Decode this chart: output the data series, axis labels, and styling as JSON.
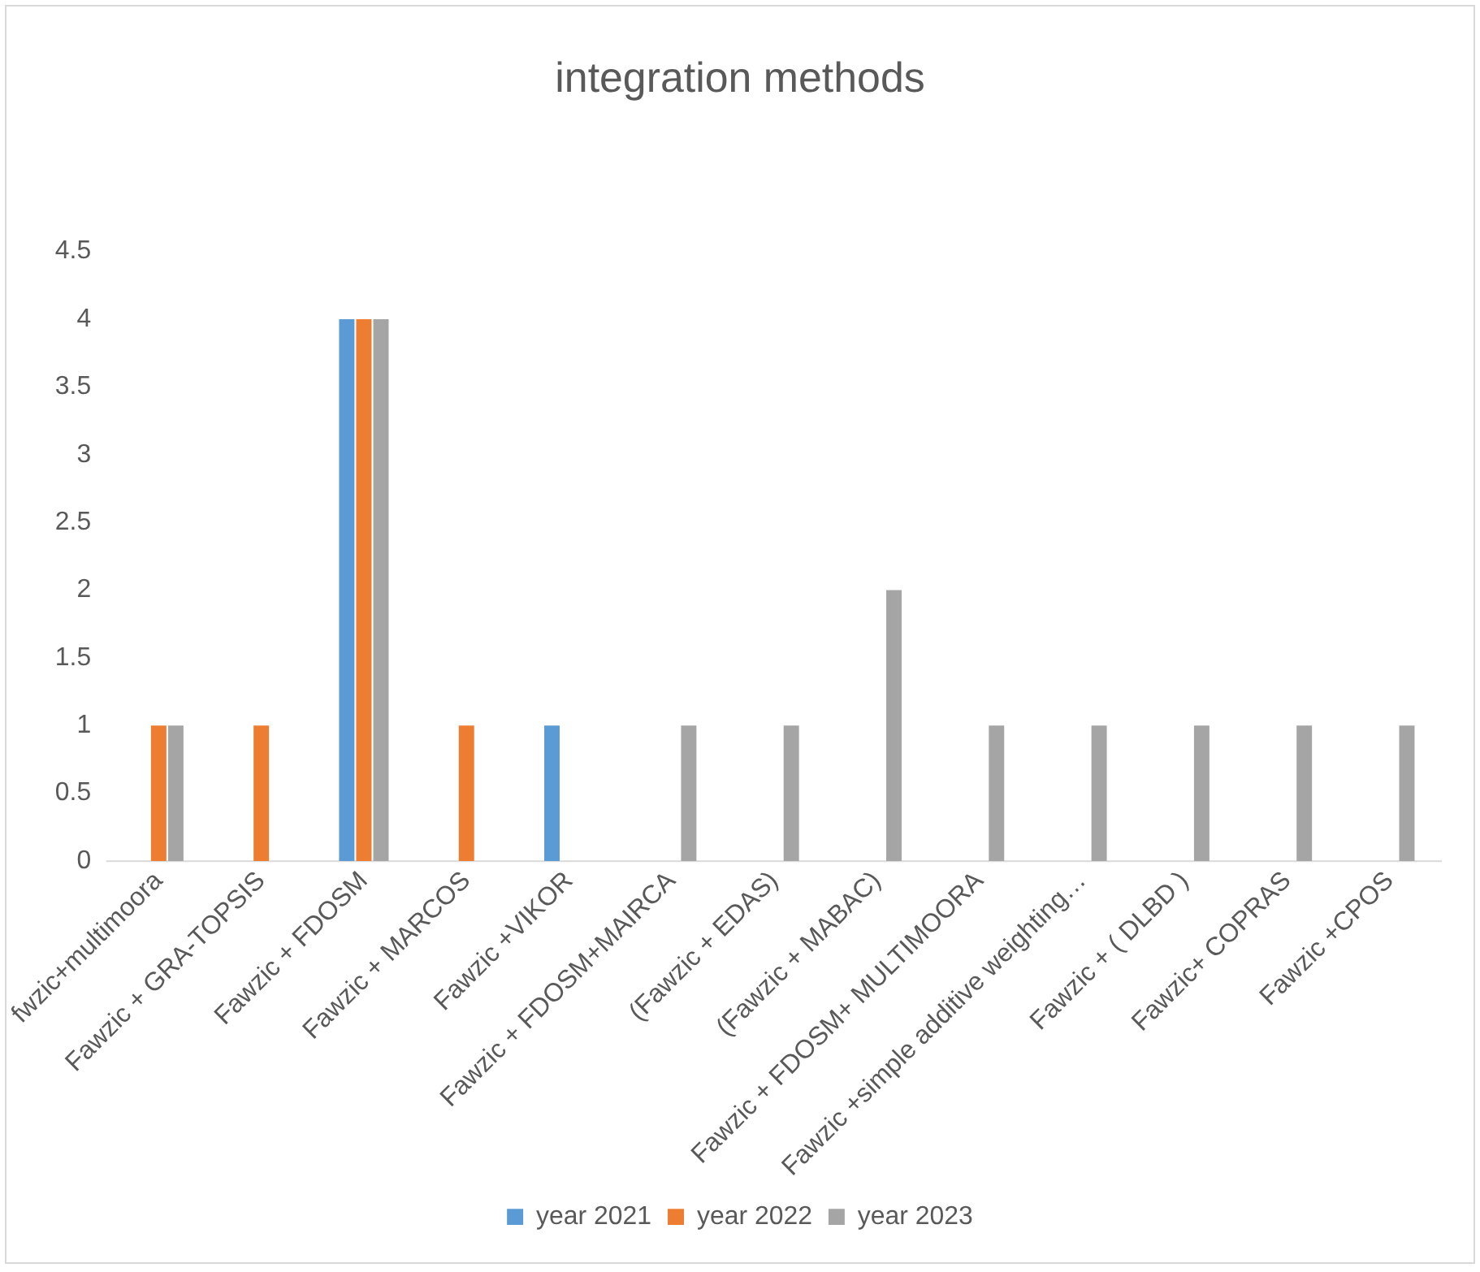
{
  "chart_data": {
    "type": "bar",
    "title": "integration methods",
    "categories": [
      "fwzic+multimoora",
      "Fawzic + GRA-TOPSIS",
      "Fawzic + FDOSM",
      "Fawzic + MARCOS",
      "Fawzic +VIKOR",
      "Fawzic + FDOSM+MAIRCA",
      "(Fawzic + EDAS)",
      "(Fawzic + MABAC)",
      "Fawzic + FDOSM+ MULTIMOORA",
      "Fawzic +simple additive weighting…",
      "Fawzic + ( DLBD )",
      "Fawzic+ COPRAS",
      "Fawzic +CPOS"
    ],
    "series": [
      {
        "name": "year 2021",
        "color": "#5b9bd5",
        "values": [
          null,
          null,
          4,
          null,
          1,
          null,
          null,
          null,
          null,
          null,
          null,
          null,
          null
        ]
      },
      {
        "name": "year 2022",
        "color": "#ed7d31",
        "values": [
          1,
          1,
          4,
          1,
          null,
          null,
          null,
          null,
          null,
          null,
          null,
          null,
          null
        ]
      },
      {
        "name": "year 2023",
        "color": "#a5a5a5",
        "values": [
          1,
          null,
          4,
          null,
          null,
          1,
          1,
          2,
          1,
          1,
          1,
          1,
          1
        ]
      }
    ],
    "ylim": [
      0,
      4.5
    ],
    "yticks": [
      0,
      0.5,
      1,
      1.5,
      2,
      2.5,
      3,
      3.5,
      4,
      4.5
    ],
    "grid": false,
    "legend": "bottom"
  }
}
